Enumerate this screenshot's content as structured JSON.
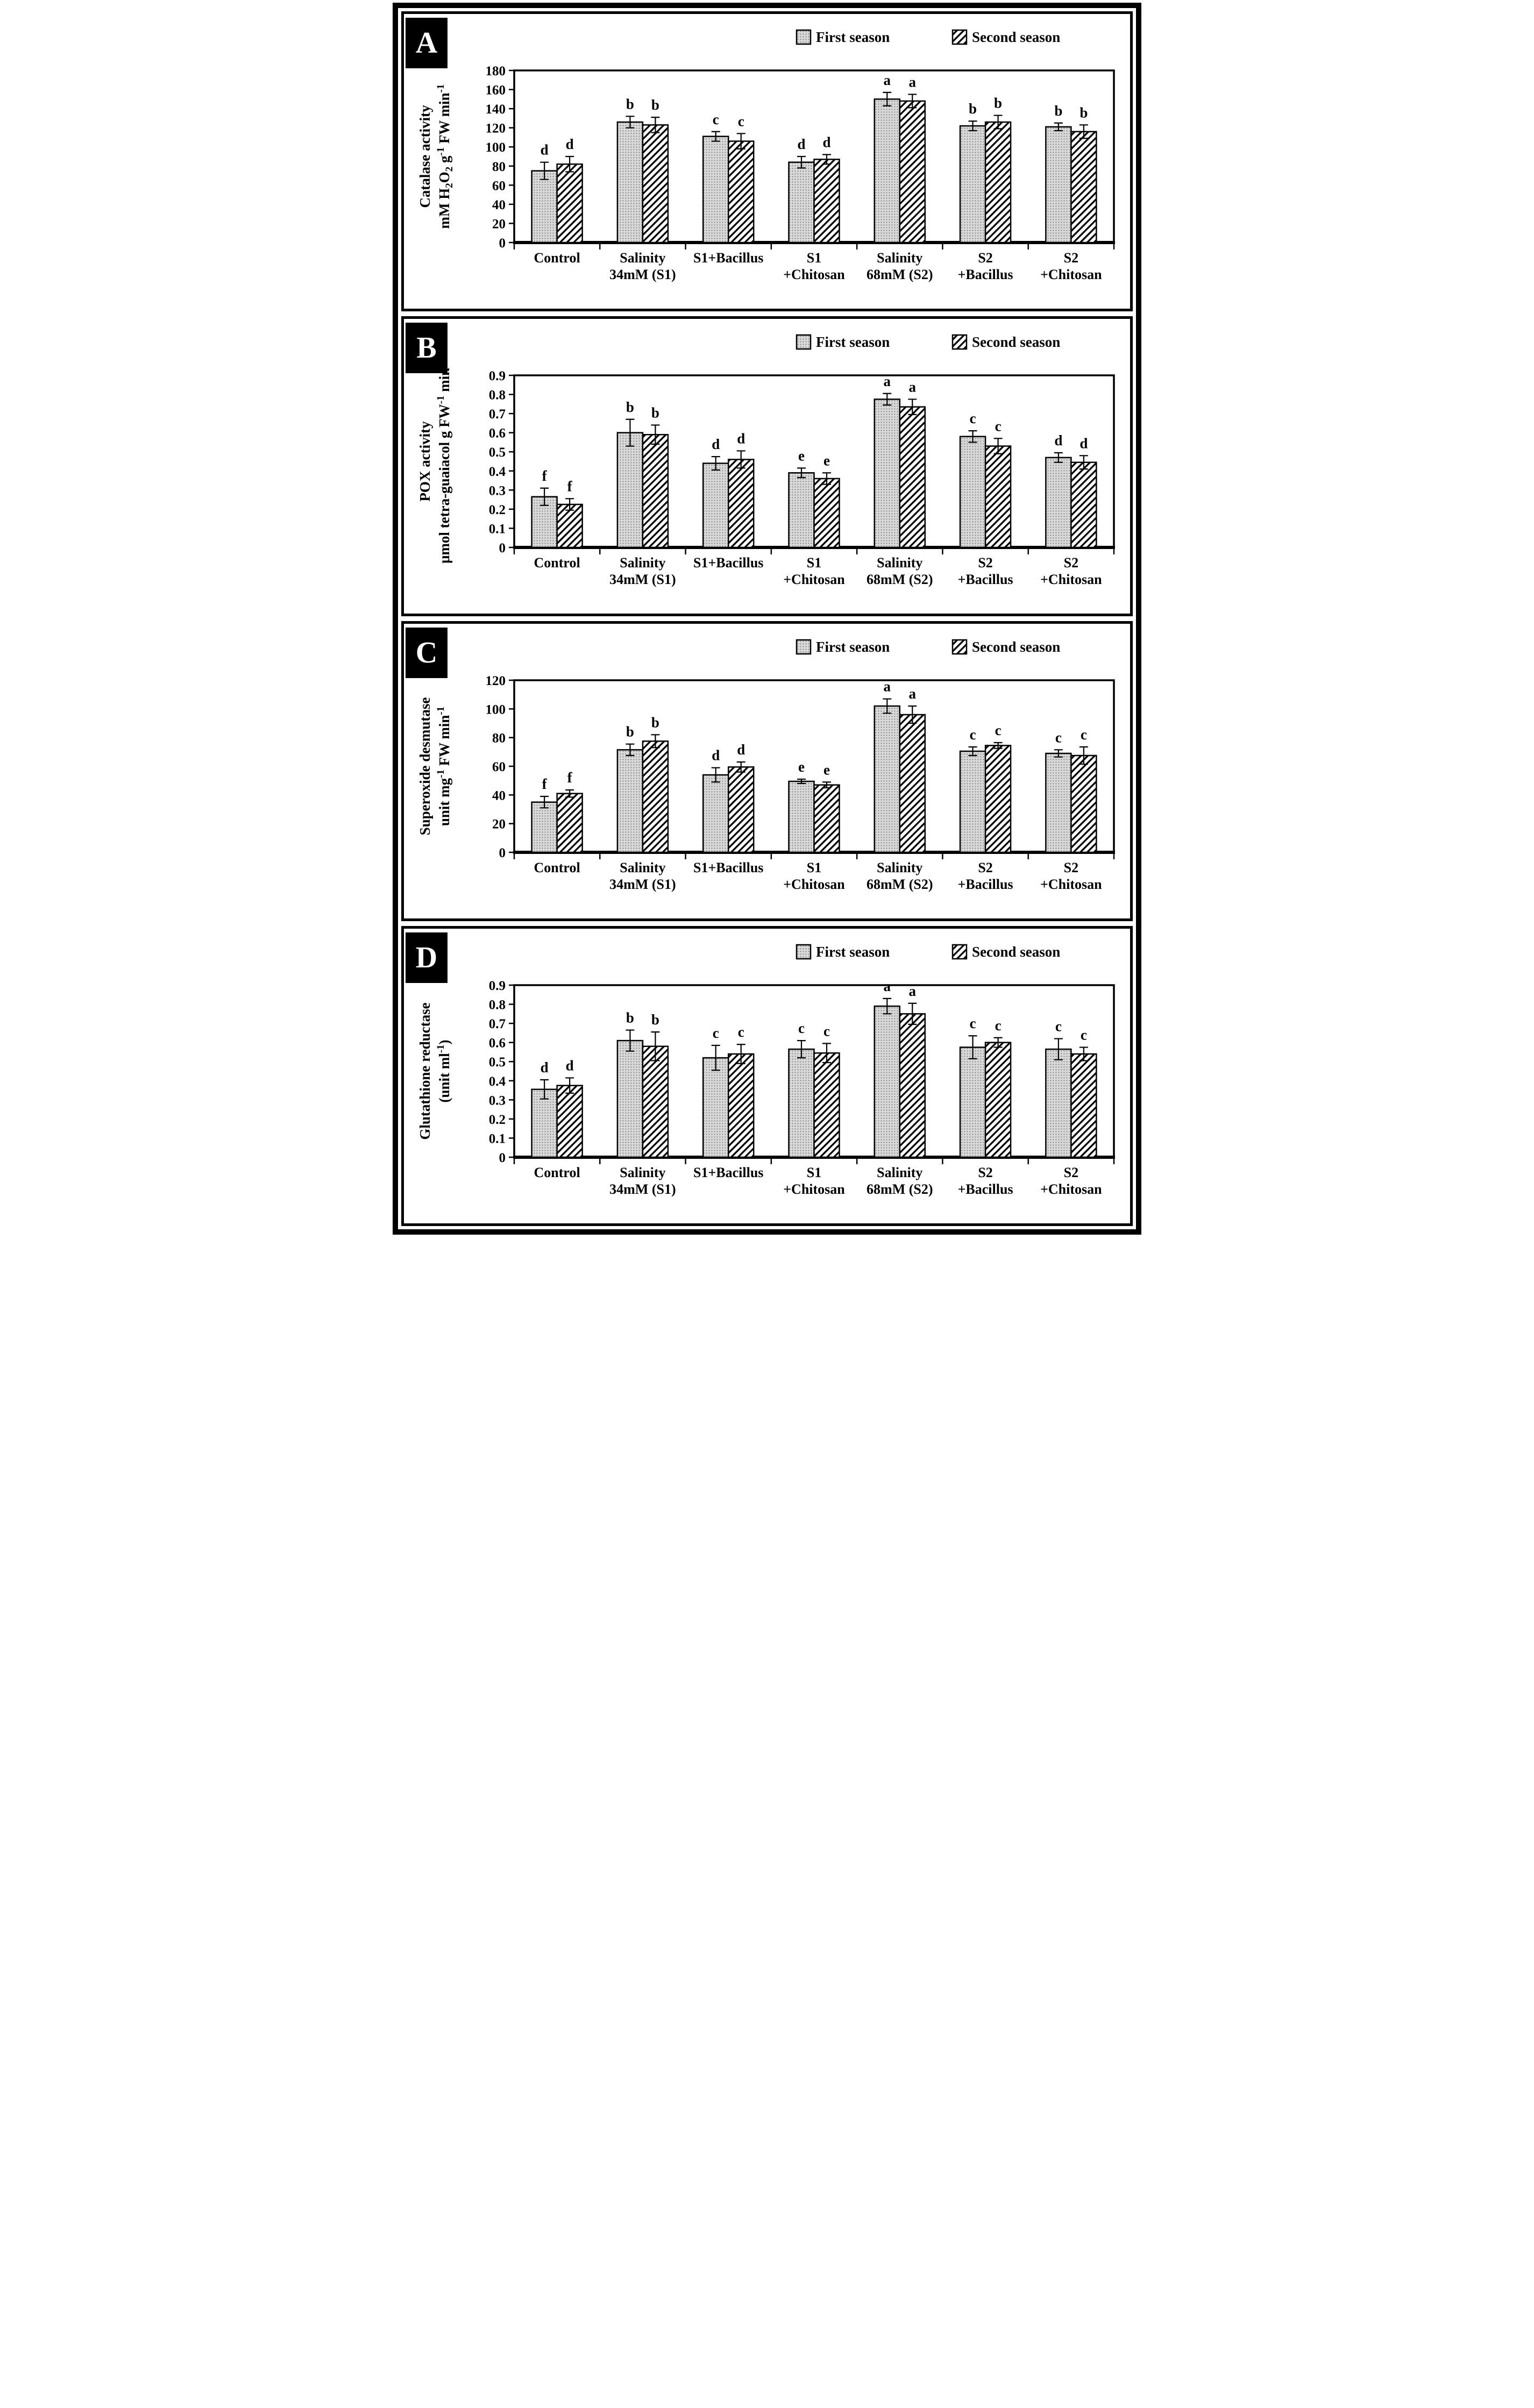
{
  "figure": {
    "description": "Four stacked bar-chart panels A-D comparing antioxidant enzyme activities across salinity treatments over two seasons",
    "legend": {
      "entries": [
        "First season",
        "Second season"
      ],
      "position": "top-right"
    },
    "colors": {
      "frame": "#000000",
      "background": "#ffffff",
      "first_season_fill": "#d9d9d9",
      "first_season_dot": "#6e6e6e",
      "second_season_hatch": "#000000",
      "text": "#000000"
    },
    "patterns": {
      "first_season": "stipple-dot-grid",
      "second_season": "diagonal-hatch"
    }
  },
  "chart_data": [
    {
      "type": "bar",
      "panel": "A",
      "title": "",
      "ylabel_line1": "Catalase activity",
      "ylabel_line2": "mM H_{2}O_{2} g^{-1} FW min^{-1}",
      "ylim": [
        0,
        180
      ],
      "ytick_step": 20,
      "ytick_decimals": 0,
      "grid": false,
      "legend_position": "top-right",
      "categories": [
        "Control",
        "Salinity\n34mM (S1)",
        "S1+Bacillus",
        "S1\n+Chitosan",
        "Salinity\n68mM (S2)",
        "S2\n+Bacillus",
        "S2\n+Chitosan"
      ],
      "series": [
        {
          "name": "First season",
          "pattern": "dots",
          "values": [
            75,
            126,
            111,
            84,
            150,
            122,
            121
          ],
          "errors": [
            9,
            6,
            5,
            6,
            7,
            5,
            4
          ]
        },
        {
          "name": "Second season",
          "pattern": "hatch",
          "values": [
            82,
            123,
            106,
            87,
            148,
            126,
            116
          ],
          "errors": [
            8,
            8,
            8,
            5,
            7,
            7,
            7
          ]
        }
      ],
      "sig_letters": [
        [
          "d",
          "d"
        ],
        [
          "b",
          "b"
        ],
        [
          "c",
          "c"
        ],
        [
          "d",
          "d"
        ],
        [
          "a",
          "a"
        ],
        [
          "b",
          "b"
        ],
        [
          "b",
          "b"
        ]
      ]
    },
    {
      "type": "bar",
      "panel": "B",
      "title": "",
      "ylabel_line1": "POX activity",
      "ylabel_line2": "μmol tetra-guaiacol g FW^{-1} min^{-1}",
      "ylim": [
        0,
        0.9
      ],
      "ytick_step": 0.1,
      "ytick_decimals": 1,
      "grid": false,
      "legend_position": "top-right",
      "categories": [
        "Control",
        "Salinity\n34mM (S1)",
        "S1+Bacillus",
        "S1\n+Chitosan",
        "Salinity\n68mM (S2)",
        "S2\n+Bacillus",
        "S2\n+Chitosan"
      ],
      "series": [
        {
          "name": "First season",
          "pattern": "dots",
          "values": [
            0.265,
            0.6,
            0.44,
            0.39,
            0.775,
            0.58,
            0.47
          ],
          "errors": [
            0.045,
            0.07,
            0.035,
            0.025,
            0.03,
            0.03,
            0.025
          ]
        },
        {
          "name": "Second season",
          "pattern": "hatch",
          "values": [
            0.225,
            0.59,
            0.46,
            0.36,
            0.735,
            0.53,
            0.445
          ],
          "errors": [
            0.03,
            0.05,
            0.045,
            0.03,
            0.04,
            0.04,
            0.035
          ]
        }
      ],
      "sig_letters": [
        [
          "f",
          "f"
        ],
        [
          "b",
          "b"
        ],
        [
          "d",
          "d"
        ],
        [
          "e",
          "e"
        ],
        [
          "a",
          "a"
        ],
        [
          "c",
          "c"
        ],
        [
          "d",
          "d"
        ]
      ]
    },
    {
      "type": "bar",
      "panel": "C",
      "title": "",
      "ylabel_line1": "Superoxide desmutase",
      "ylabel_line2": "unit mg^{-1} FW min^{-1}",
      "ylim": [
        0,
        120
      ],
      "ytick_step": 20,
      "ytick_decimals": 0,
      "grid": false,
      "legend_position": "top-right",
      "categories": [
        "Control",
        "Salinity\n34mM (S1)",
        "S1+Bacillus",
        "S1\n+Chitosan",
        "Salinity\n68mM (S2)",
        "S2\n+Bacillus",
        "S2\n+Chitosan"
      ],
      "series": [
        {
          "name": "First season",
          "pattern": "dots",
          "values": [
            35,
            71.5,
            54,
            49.5,
            102,
            70.5,
            69
          ],
          "errors": [
            4,
            4,
            5,
            1.5,
            5,
            3,
            2.5
          ]
        },
        {
          "name": "Second season",
          "pattern": "hatch",
          "values": [
            41,
            77.5,
            59.5,
            47,
            96,
            74.5,
            67.5
          ],
          "errors": [
            2.5,
            4.5,
            3.5,
            2,
            6,
            2,
            6
          ]
        }
      ],
      "sig_letters": [
        [
          "f",
          "f"
        ],
        [
          "b",
          "b"
        ],
        [
          "d",
          "d"
        ],
        [
          "e",
          "e"
        ],
        [
          "a",
          "a"
        ],
        [
          "c",
          "c"
        ],
        [
          "c",
          "c"
        ]
      ]
    },
    {
      "type": "bar",
      "panel": "D",
      "title": "",
      "ylabel_line1": "Glutathione reductase",
      "ylabel_line2": "(unit ml^{-1})",
      "ylim": [
        0,
        0.9
      ],
      "ytick_step": 0.1,
      "ytick_decimals": 1,
      "grid": false,
      "legend_position": "top-right",
      "categories": [
        "Control",
        "Salinity\n34mM (S1)",
        "S1+Bacillus",
        "S1\n+Chitosan",
        "Salinity\n68mM (S2)",
        "S2\n+Bacillus",
        "S2\n+Chitosan"
      ],
      "series": [
        {
          "name": "First season",
          "pattern": "dots",
          "values": [
            0.355,
            0.61,
            0.52,
            0.565,
            0.79,
            0.575,
            0.565
          ],
          "errors": [
            0.05,
            0.055,
            0.065,
            0.045,
            0.04,
            0.06,
            0.055
          ]
        },
        {
          "name": "Second season",
          "pattern": "hatch",
          "values": [
            0.375,
            0.58,
            0.54,
            0.545,
            0.75,
            0.6,
            0.54
          ],
          "errors": [
            0.04,
            0.075,
            0.05,
            0.05,
            0.055,
            0.025,
            0.035
          ]
        }
      ],
      "sig_letters": [
        [
          "d",
          "d"
        ],
        [
          "b",
          "b"
        ],
        [
          "c",
          "c"
        ],
        [
          "c",
          "c"
        ],
        [
          "a",
          "a"
        ],
        [
          "c",
          "c"
        ],
        [
          "c",
          "c"
        ]
      ]
    }
  ]
}
